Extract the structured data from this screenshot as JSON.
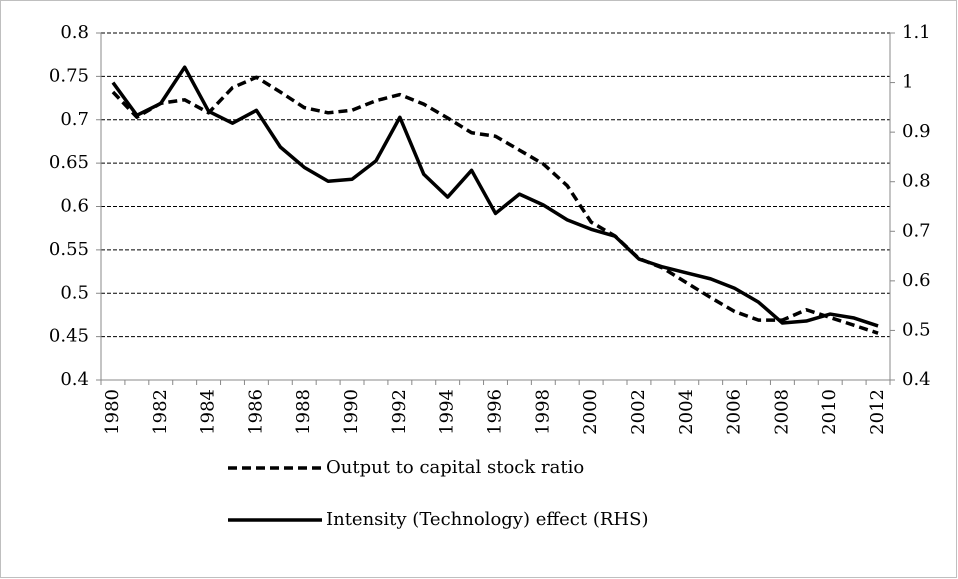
{
  "chart_data": {
    "type": "line",
    "categories": [
      "1980",
      null,
      "1982",
      null,
      "1984",
      null,
      "1986",
      null,
      "1988",
      null,
      "1990",
      null,
      "1992",
      null,
      "1994",
      null,
      "1996",
      null,
      "1998",
      null,
      "2000",
      null,
      "2002",
      null,
      "2004",
      null,
      "2006",
      null,
      "2008",
      null,
      "2010",
      null,
      "2012"
    ],
    "series": [
      {
        "name": "Output to capital stock ratio",
        "color": "#000000",
        "dash": true,
        "axis": "y",
        "values": [
          0.732,
          0.703,
          0.719,
          0.723,
          0.708,
          0.737,
          0.749,
          0.732,
          0.714,
          0.708,
          0.711,
          0.722,
          0.729,
          0.718,
          0.702,
          0.685,
          0.681,
          0.665,
          0.649,
          0.624,
          0.582,
          0.566,
          0.54,
          0.529,
          0.512,
          0.495,
          0.479,
          0.469,
          0.469,
          0.481,
          0.472,
          0.463,
          0.454
        ]
      },
      {
        "name": "Intensity (Technology) effect (RHS)",
        "color": "#000000",
        "dash": false,
        "axis": "y2",
        "values": [
          1.0,
          0.934,
          0.958,
          1.031,
          0.942,
          0.918,
          0.944,
          0.87,
          0.829,
          0.801,
          0.805,
          0.842,
          0.93,
          0.815,
          0.769,
          0.823,
          0.736,
          0.775,
          0.753,
          0.723,
          0.704,
          0.69,
          0.644,
          0.628,
          0.616,
          0.604,
          0.585,
          0.557,
          0.515,
          0.519,
          0.533,
          0.525,
          0.509
        ]
      }
    ],
    "ylim": [
      0.4,
      0.8
    ],
    "yticks": [
      0.4,
      0.45,
      0.5,
      0.55,
      0.6,
      0.65,
      0.7,
      0.75,
      0.8
    ],
    "y2lim": [
      0.4,
      1.1
    ],
    "y2ticks": [
      0.4,
      0.5,
      0.6,
      0.7,
      0.8,
      0.9,
      1,
      1.1
    ],
    "grid": true,
    "legend": "bottom"
  }
}
